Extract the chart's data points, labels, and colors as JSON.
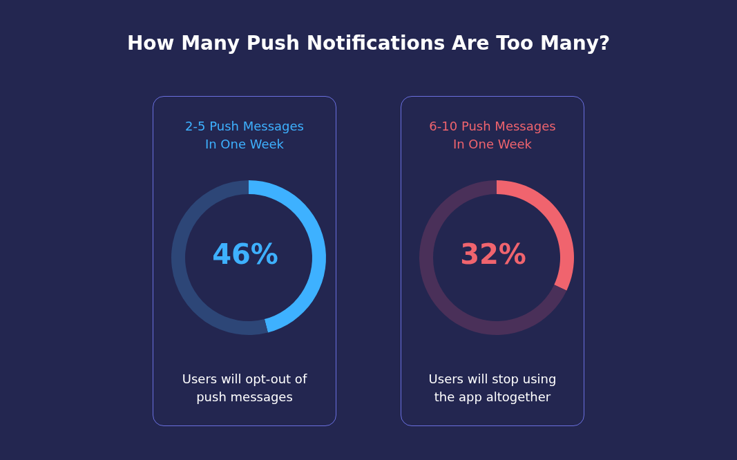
{
  "chart_data": [
    {
      "type": "other",
      "title": "How Many Push Notifications Are Too Many?"
    },
    {
      "type": "donut",
      "title": "2-5 Push Messages In One Week",
      "categories": [
        null,
        null
      ],
      "values": [
        46,
        54
      ],
      "colors": [
        "#3eb1ff",
        "#2d4677"
      ],
      "annotations": [
        "46%",
        "Users will opt-out of push messages"
      ]
    },
    {
      "type": "donut",
      "title": "6-10 Push Messages In One Week",
      "categories": [
        null,
        null
      ],
      "values": [
        32,
        68
      ],
      "colors": [
        "#f0646e",
        "#4a3059"
      ],
      "annotations": [
        "32%",
        "Users will stop using the app altogether"
      ]
    }
  ]
}
